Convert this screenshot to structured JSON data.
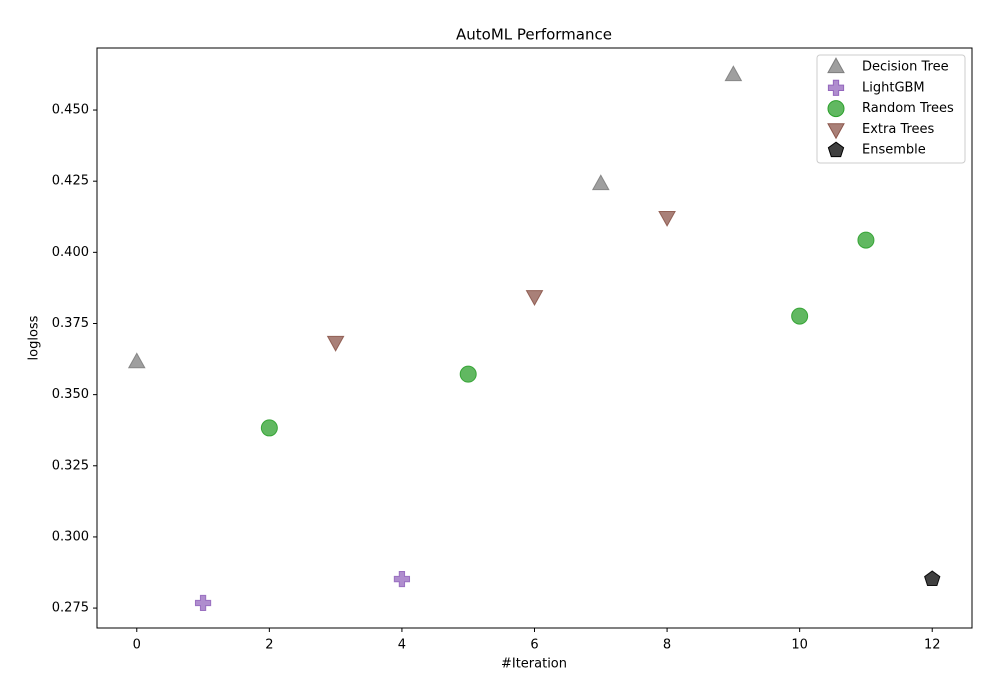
{
  "chart_data": {
    "type": "scatter",
    "title": "AutoML Performance",
    "x_label": "#Iteration",
    "y_label": "logloss",
    "xlim": [
      -0.6,
      12.6
    ],
    "xticks": [
      0,
      2,
      4,
      6,
      8,
      10,
      12
    ],
    "ylim": [
      0.268,
      0.4718
    ],
    "yticks": [
      0.275,
      {
        "value": 0.3,
        "label": "0.300"
      },
      0.325,
      {
        "value": 0.35,
        "label": "0.350"
      },
      0.375,
      {
        "value": 0.4,
        "label": "0.400"
      },
      0.425,
      {
        "value": 0.45,
        "label": "0.450"
      }
    ],
    "grid": false,
    "legend": "upper right",
    "series": [
      {
        "name": "Decision Tree",
        "color": "#7f7f7f",
        "marker": "triangle-up",
        "x": [
          0,
          7,
          9
        ],
        "values": [
          0.3614,
          0.424,
          0.4623
        ]
      },
      {
        "name": "LightGBM",
        "color": "#9467bd",
        "marker": "plus",
        "x": [
          1,
          4
        ],
        "values": [
          0.2768,
          0.2852
        ]
      },
      {
        "name": "Random Trees",
        "color": "#2ca02c",
        "marker": "circle",
        "x": [
          2,
          5,
          10,
          11
        ],
        "values": [
          0.3383,
          0.3572,
          0.3776,
          0.4043
        ]
      },
      {
        "name": "Extra Trees",
        "color": "#8c564b",
        "marker": "triangle-down",
        "x": [
          3,
          6,
          8
        ],
        "values": [
          0.3685,
          0.3846,
          0.4124
        ]
      },
      {
        "name": "Ensemble",
        "color": "#000000",
        "marker": "pentagon",
        "x": [
          12
        ],
        "values": [
          0.2852
        ]
      }
    ]
  }
}
